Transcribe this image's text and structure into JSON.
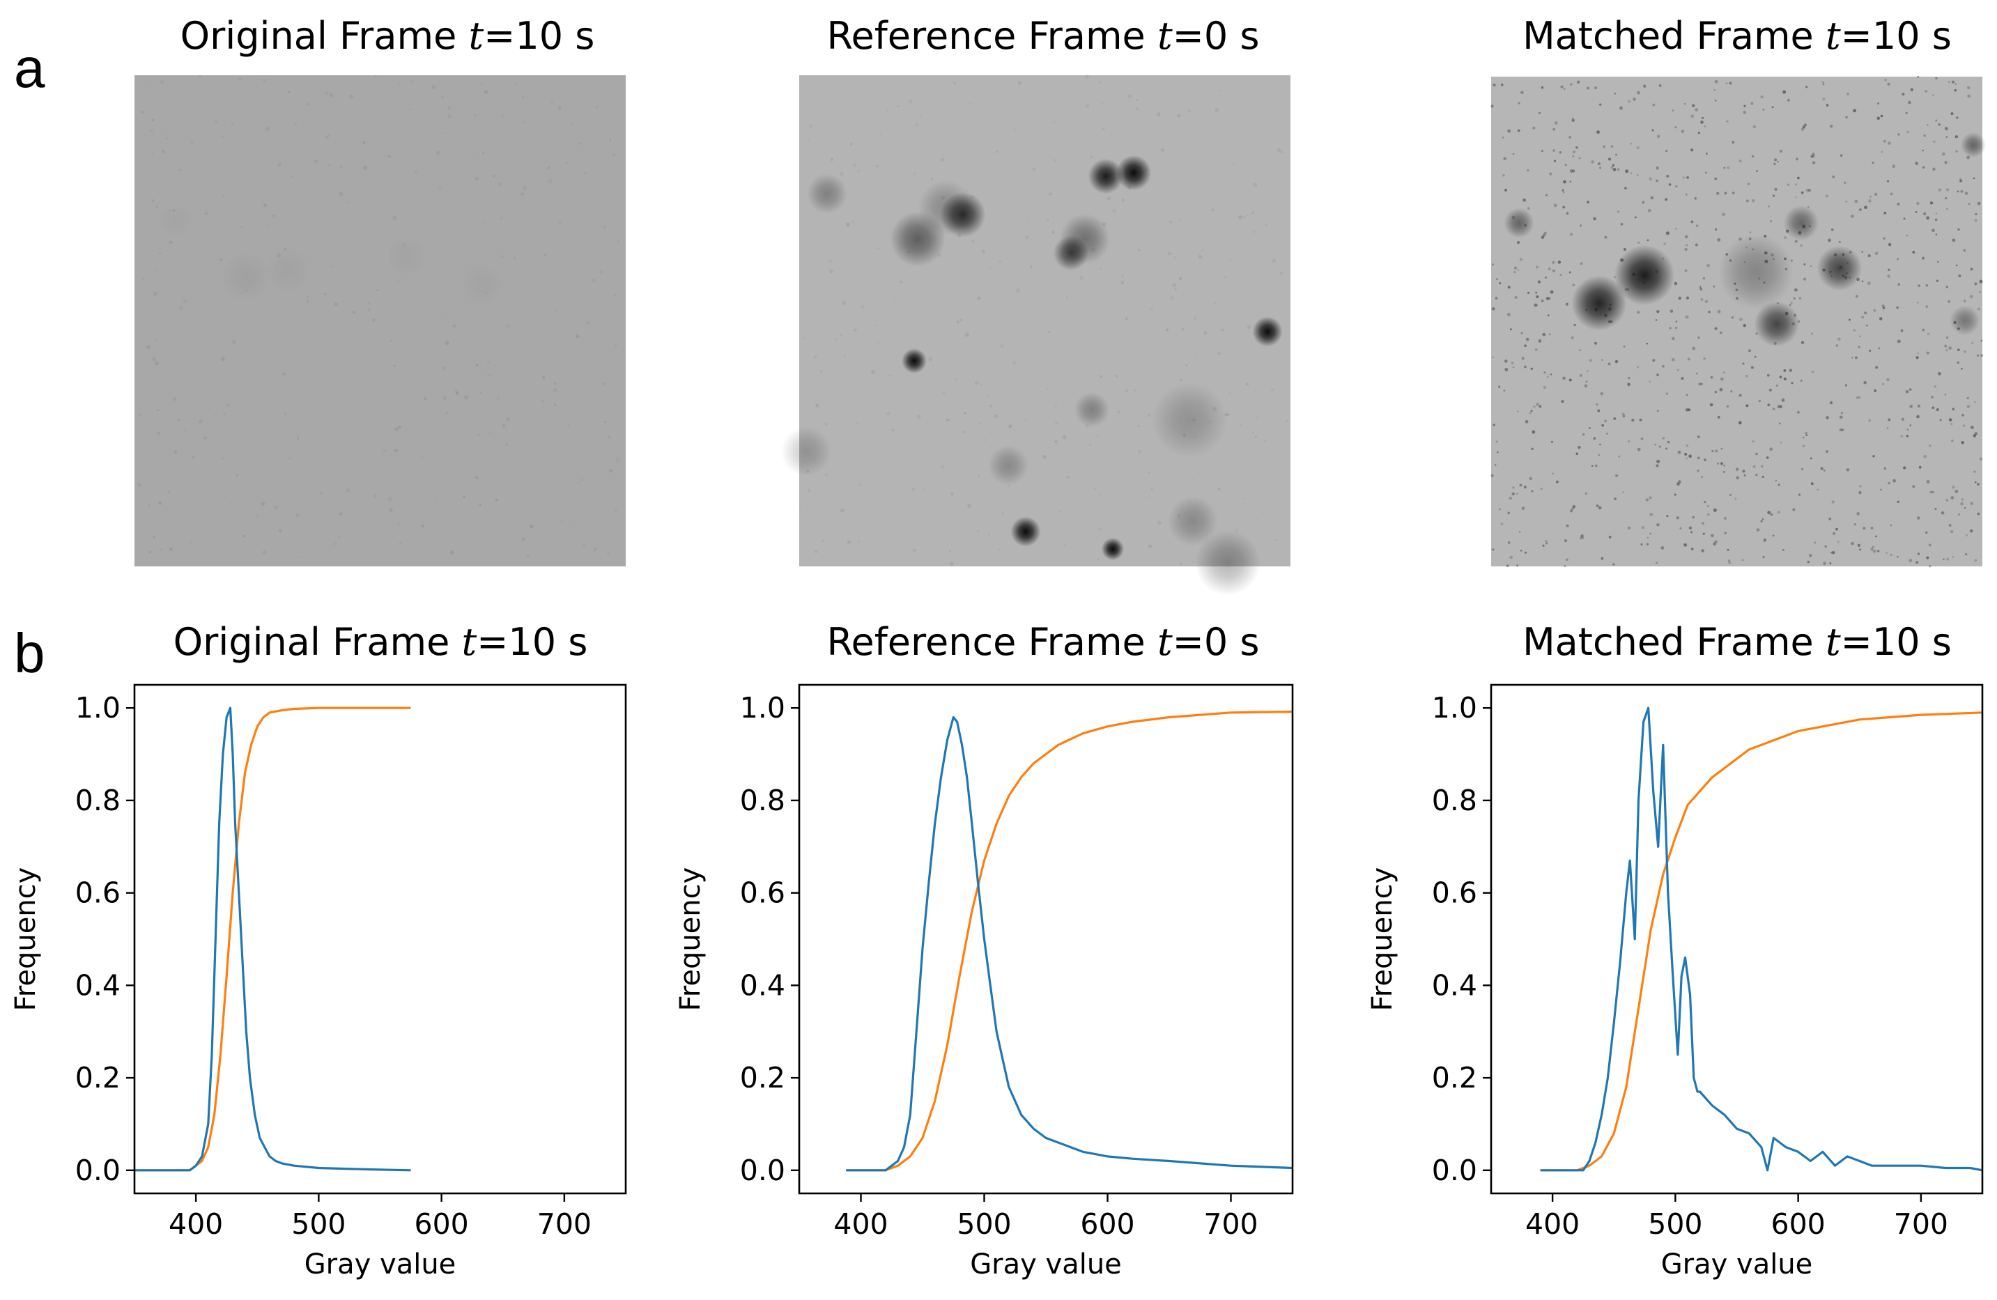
{
  "panel_a": {
    "letter": "a",
    "images": [
      {
        "title_pre": "Original Frame ",
        "title_var": "t",
        "title_post": "=10 s",
        "background": "#a8a8a8",
        "spot_color": "#8a8a8a"
      },
      {
        "title_pre": "Reference Frame ",
        "title_var": "t",
        "title_post": "=0 s",
        "background": "#b4b4b4",
        "spot_color": "#0a0a0a"
      },
      {
        "title_pre": "Matched Frame ",
        "title_var": "t",
        "title_post": "=10 s",
        "background": "#b6b6b6",
        "spot_color": "#141414"
      }
    ]
  },
  "panel_b": {
    "letter": "b"
  },
  "chart_data": [
    {
      "type": "line",
      "title_pre": "Original Frame ",
      "title_var": "t",
      "title_post": "=10 s",
      "xlabel": "Gray value",
      "ylabel": "Frequency",
      "xlim": [
        350,
        750
      ],
      "ylim": [
        -0.05,
        1.05
      ],
      "xticks": [
        400,
        500,
        600,
        700
      ],
      "yticks": [
        0.0,
        0.2,
        0.4,
        0.6,
        0.8,
        1.0
      ],
      "xtick_labels": [
        "400",
        "500",
        "600",
        "700"
      ],
      "ytick_labels": [
        "0.0",
        "0.2",
        "0.4",
        "0.6",
        "0.8",
        "1.0"
      ],
      "colors": {
        "histogram": "#1f77b4",
        "cumulative": "#ff7f0e"
      },
      "series": [
        {
          "role": "histogram",
          "x": [
            350,
            395,
            400,
            405,
            410,
            413,
            416,
            419,
            422,
            425,
            428,
            430,
            432,
            435,
            438,
            441,
            444,
            448,
            452,
            456,
            460,
            465,
            470,
            480,
            500,
            540,
            575
          ],
          "y": [
            0.0,
            0.0,
            0.01,
            0.03,
            0.1,
            0.25,
            0.5,
            0.75,
            0.9,
            0.98,
            1.0,
            0.9,
            0.75,
            0.6,
            0.45,
            0.3,
            0.2,
            0.12,
            0.07,
            0.05,
            0.03,
            0.02,
            0.015,
            0.01,
            0.005,
            0.002,
            0.0
          ]
        },
        {
          "role": "cumulative",
          "x": [
            350,
            395,
            400,
            405,
            410,
            415,
            420,
            425,
            430,
            435,
            440,
            445,
            450,
            455,
            460,
            470,
            480,
            500,
            540,
            575
          ],
          "y": [
            0.0,
            0.0,
            0.01,
            0.02,
            0.05,
            0.12,
            0.25,
            0.42,
            0.6,
            0.75,
            0.86,
            0.92,
            0.96,
            0.98,
            0.99,
            0.995,
            0.998,
            1.0,
            1.0,
            1.0
          ]
        }
      ]
    },
    {
      "type": "line",
      "title_pre": "Reference Frame ",
      "title_var": "t",
      "title_post": "=0 s",
      "xlabel": "Gray value",
      "ylabel": "Frequency",
      "xlim": [
        350,
        750
      ],
      "ylim": [
        -0.05,
        1.05
      ],
      "xticks": [
        400,
        500,
        600,
        700
      ],
      "yticks": [
        0.0,
        0.2,
        0.4,
        0.6,
        0.8,
        1.0
      ],
      "xtick_labels": [
        "400",
        "500",
        "600",
        "700"
      ],
      "ytick_labels": [
        "0.0",
        "0.2",
        "0.4",
        "0.6",
        "0.8",
        "1.0"
      ],
      "colors": {
        "histogram": "#1f77b4",
        "cumulative": "#ff7f0e"
      },
      "series": [
        {
          "role": "histogram",
          "x": [
            388,
            420,
            430,
            435,
            440,
            445,
            450,
            455,
            460,
            465,
            470,
            475,
            478,
            482,
            486,
            490,
            495,
            500,
            505,
            510,
            515,
            520,
            525,
            530,
            540,
            550,
            560,
            570,
            580,
            590,
            600,
            620,
            650,
            700,
            750
          ],
          "y": [
            0.0,
            0.0,
            0.02,
            0.05,
            0.12,
            0.3,
            0.48,
            0.62,
            0.75,
            0.85,
            0.93,
            0.98,
            0.97,
            0.92,
            0.85,
            0.75,
            0.62,
            0.5,
            0.4,
            0.3,
            0.24,
            0.18,
            0.15,
            0.12,
            0.09,
            0.07,
            0.06,
            0.05,
            0.04,
            0.035,
            0.03,
            0.025,
            0.02,
            0.01,
            0.005
          ]
        },
        {
          "role": "cumulative",
          "x": [
            388,
            420,
            430,
            440,
            450,
            460,
            470,
            480,
            490,
            500,
            510,
            520,
            530,
            540,
            550,
            560,
            580,
            600,
            620,
            650,
            700,
            750
          ],
          "y": [
            0.0,
            0.0,
            0.01,
            0.03,
            0.07,
            0.15,
            0.27,
            0.42,
            0.56,
            0.67,
            0.75,
            0.81,
            0.85,
            0.88,
            0.9,
            0.92,
            0.945,
            0.96,
            0.97,
            0.98,
            0.99,
            0.992
          ]
        }
      ]
    },
    {
      "type": "line",
      "title_pre": "Matched Frame ",
      "title_var": "t",
      "title_post": "=10 s",
      "xlabel": "Gray value",
      "ylabel": "Frequency",
      "xlim": [
        350,
        750
      ],
      "ylim": [
        -0.05,
        1.05
      ],
      "xticks": [
        400,
        500,
        600,
        700
      ],
      "yticks": [
        0.0,
        0.2,
        0.4,
        0.6,
        0.8,
        1.0
      ],
      "xtick_labels": [
        "400",
        "500",
        "600",
        "700"
      ],
      "ytick_labels": [
        "0.0",
        "0.2",
        "0.4",
        "0.6",
        "0.8",
        "1.0"
      ],
      "colors": {
        "histogram": "#1f77b4",
        "cumulative": "#ff7f0e"
      },
      "series": [
        {
          "role": "histogram",
          "x": [
            390,
            425,
            430,
            435,
            440,
            445,
            450,
            455,
            460,
            463,
            467,
            470,
            474,
            478,
            482,
            486,
            490,
            494,
            498,
            502,
            505,
            508,
            512,
            515,
            518,
            520,
            530,
            540,
            550,
            560,
            570,
            575,
            580,
            590,
            600,
            610,
            620,
            630,
            640,
            650,
            660,
            670,
            680,
            700,
            720,
            740,
            750
          ],
          "y": [
            0.0,
            0.0,
            0.02,
            0.06,
            0.12,
            0.2,
            0.32,
            0.45,
            0.6,
            0.67,
            0.5,
            0.8,
            0.97,
            1.0,
            0.82,
            0.7,
            0.92,
            0.6,
            0.42,
            0.25,
            0.42,
            0.46,
            0.38,
            0.2,
            0.17,
            0.17,
            0.14,
            0.12,
            0.09,
            0.08,
            0.05,
            0.0,
            0.07,
            0.05,
            0.04,
            0.02,
            0.04,
            0.01,
            0.03,
            0.02,
            0.01,
            0.01,
            0.01,
            0.01,
            0.005,
            0.005,
            0.0
          ]
        },
        {
          "role": "cumulative",
          "x": [
            390,
            420,
            430,
            440,
            450,
            460,
            470,
            480,
            490,
            500,
            510,
            520,
            530,
            540,
            550,
            560,
            570,
            580,
            600,
            620,
            650,
            700,
            750
          ],
          "y": [
            0.0,
            0.0,
            0.01,
            0.03,
            0.08,
            0.18,
            0.35,
            0.52,
            0.64,
            0.72,
            0.79,
            0.82,
            0.85,
            0.87,
            0.89,
            0.91,
            0.92,
            0.93,
            0.95,
            0.96,
            0.975,
            0.985,
            0.99
          ]
        }
      ]
    }
  ]
}
